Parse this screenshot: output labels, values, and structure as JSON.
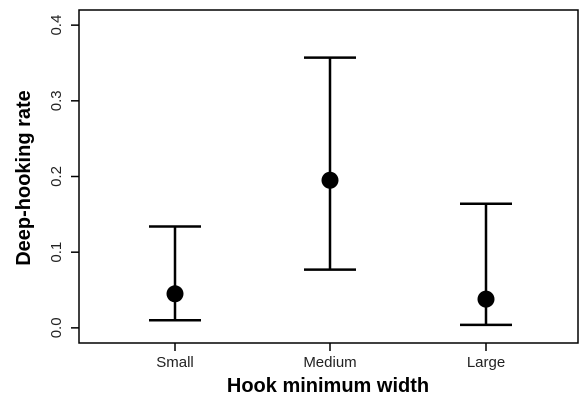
{
  "chart_data": {
    "type": "scatter",
    "title": "",
    "xlabel": "Hook minimum width",
    "ylabel": "Deep-hooking rate",
    "categories": [
      "Small",
      "Medium",
      "Large"
    ],
    "series": [
      {
        "values": [
          0.045,
          0.195,
          0.038
        ],
        "lower": [
          0.01,
          0.077,
          0.004
        ],
        "upper": [
          0.134,
          0.357,
          0.164
        ]
      }
    ],
    "ylim": [
      -0.02,
      0.42
    ],
    "yticks": [
      0.0,
      0.1,
      0.2,
      0.3,
      0.4
    ],
    "ytick_labels": [
      "0.0",
      "0.1",
      "0.2",
      "0.3",
      "0.4"
    ],
    "grid": false,
    "legend": "none",
    "colors": {
      "marks": "#000000",
      "axis": "#000000",
      "background": "#ffffff"
    }
  }
}
